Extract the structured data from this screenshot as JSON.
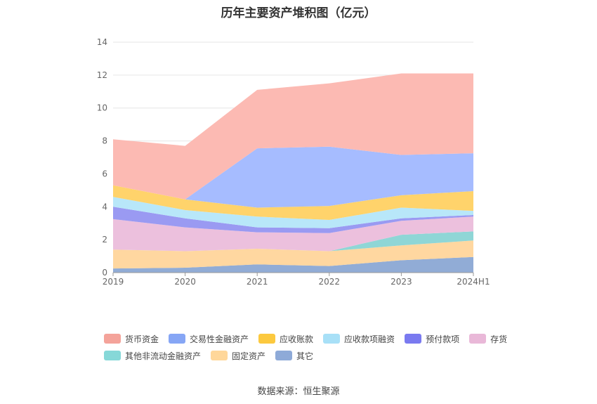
{
  "title": "历年主要资产堆积图（亿元）",
  "source": "数据来源：恒生聚源",
  "chart_data": {
    "type": "area",
    "stacked": true,
    "categories": [
      "2019",
      "2020",
      "2021",
      "2022",
      "2023",
      "2024H1"
    ],
    "ylim": [
      0,
      14
    ],
    "yticks": [
      0,
      2,
      4,
      6,
      8,
      10,
      12,
      14
    ],
    "grid": true,
    "legend_position": "bottom",
    "series": [
      {
        "name": "其它",
        "color": "#91acd6",
        "values": [
          0.25,
          0.3,
          0.5,
          0.4,
          0.75,
          0.95
        ]
      },
      {
        "name": "固定资产",
        "color": "#ffd7a0",
        "values": [
          1.15,
          1.0,
          0.95,
          0.9,
          0.9,
          1.0
        ]
      },
      {
        "name": "其他非流动金融资产",
        "color": "#8fd6d6",
        "values": [
          0.0,
          0.0,
          0.0,
          0.0,
          0.65,
          0.55
        ]
      },
      {
        "name": "存货",
        "color": "#ecc0dd",
        "values": [
          1.85,
          1.45,
          1.0,
          1.1,
          0.85,
          0.9
        ]
      },
      {
        "name": "预付款项",
        "color": "#9a9af2",
        "values": [
          0.75,
          0.55,
          0.3,
          0.3,
          0.15,
          0.1
        ]
      },
      {
        "name": "应收款项融资",
        "color": "#b8e7f9",
        "values": [
          0.6,
          0.5,
          0.65,
          0.5,
          0.65,
          0.25
        ]
      },
      {
        "name": "应收账款",
        "color": "#ffd36b",
        "values": [
          0.7,
          0.65,
          0.55,
          0.85,
          0.75,
          1.2
        ]
      },
      {
        "name": "交易性金融资产",
        "color": "#a6bcff",
        "values": [
          0.0,
          0.0,
          3.6,
          3.6,
          2.45,
          2.3
        ]
      },
      {
        "name": "货币资金",
        "color": "#fcbab3",
        "values": [
          2.8,
          3.25,
          3.55,
          3.85,
          4.95,
          4.85
        ]
      }
    ]
  },
  "legend": [
    [
      {
        "name": "货币资金",
        "color": "#f4a39a"
      },
      {
        "name": "交易性金融资产",
        "color": "#86a6f5"
      },
      {
        "name": "应收账款",
        "color": "#fcc93f"
      },
      {
        "name": "应收款项融资",
        "color": "#a8e0f7"
      },
      {
        "name": "预付款项",
        "color": "#7a7af0"
      },
      {
        "name": "存货",
        "color": "#e9b8d8"
      }
    ],
    [
      {
        "name": "其他非流动金融资产",
        "color": "#86d8d8"
      },
      {
        "name": "固定资产",
        "color": "#ffd79a"
      },
      {
        "name": "其它",
        "color": "#8eaad8"
      }
    ]
  ]
}
